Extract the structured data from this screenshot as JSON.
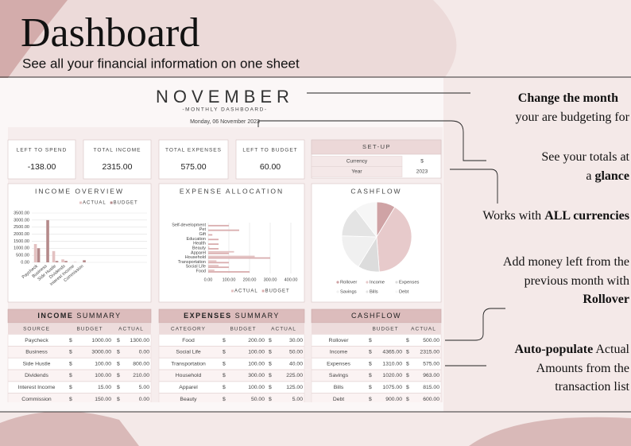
{
  "header": {
    "title": "Dashboard",
    "subtitle": "See all your financial information on one sheet"
  },
  "dashboard": {
    "month": "NOVEMBER",
    "subtitle": "-MONTHLY DASHBOARD-",
    "date": "Monday, 06 November 2023"
  },
  "cards": [
    {
      "label": "LEFT TO SPEND",
      "value": "-138.00"
    },
    {
      "label": "TOTAL INCOME",
      "value": "2315.00"
    },
    {
      "label": "TOTAL EXPENSES",
      "value": "575.00"
    },
    {
      "label": "LEFT TO BUDGET",
      "value": "60.00"
    }
  ],
  "setup": {
    "title": "SET-UP",
    "rows": [
      [
        "Currency",
        "$"
      ],
      [
        "Year",
        "2023"
      ]
    ]
  },
  "chart_data": [
    {
      "type": "bar",
      "title": "INCOME OVERVIEW",
      "categories": [
        "Paycheck",
        "Business",
        "Side Hustle",
        "Dividends",
        "Interest Income",
        "Commission"
      ],
      "series": [
        {
          "name": "ACTUAL",
          "color": "#e3c1c1",
          "values": [
            1300,
            0,
            800,
            210,
            5,
            0
          ]
        },
        {
          "name": "BUDGET",
          "color": "#b58a8b",
          "values": [
            1000,
            3000,
            100,
            100,
            15,
            150
          ]
        }
      ],
      "ylim": [
        0,
        3500
      ],
      "yticks": [
        {
          "value": 0,
          "label": "0.00"
        },
        {
          "value": 500,
          "label": "500.00"
        },
        {
          "value": 1000,
          "label": "1000.00"
        },
        {
          "value": 1500,
          "label": "1500.00"
        },
        {
          "value": 2000,
          "label": "2000.00"
        },
        {
          "value": 2500,
          "label": "2500.00"
        },
        {
          "value": 3000,
          "label": "3000.00"
        },
        {
          "value": 3500,
          "label": "3500.00"
        }
      ],
      "grid": true
    },
    {
      "type": "hbar",
      "title": "EXPENSE ALLOCATION",
      "categories": [
        "Food",
        "Social Life",
        "Transportation",
        "Household",
        "Apparel",
        "Beauty",
        "Health",
        "Education",
        "Gift",
        "Pet",
        "Self-development"
      ],
      "series": [
        {
          "name": "ACTUAL",
          "color": "#e3c1c1",
          "values": [
            30,
            50,
            40,
            225,
            125,
            5,
            0,
            0,
            0,
            0,
            0
          ]
        },
        {
          "name": "BUDGET",
          "color": "#d9adae",
          "values": [
            200,
            100,
            100,
            300,
            100,
            50,
            50,
            50,
            20,
            150,
            100
          ]
        }
      ],
      "xlim": [
        0,
        400
      ],
      "xticks": [
        {
          "value": 0,
          "label": "0.00"
        },
        {
          "value": 100,
          "label": "100.00"
        },
        {
          "value": 200,
          "label": "200.00"
        },
        {
          "value": 300,
          "label": "300.00"
        },
        {
          "value": 400,
          "label": "400.00"
        }
      ],
      "grid": true
    },
    {
      "type": "pie",
      "title": "CASHFLOW",
      "categories": [
        "Rollover",
        "Income",
        "Expenses",
        "Savings",
        "Bills",
        "Debt"
      ],
      "values": [
        500,
        2315,
        575,
        963,
        815,
        600
      ],
      "colors": [
        "#cfa3a5",
        "#e7cacb",
        "#dcdcdc",
        "#f0f0f0",
        "#e4e4e4",
        "#f6f6f6"
      ]
    }
  ],
  "tables": [
    {
      "title_bold": "INCOME",
      "title": "SUMMARY",
      "columns": [
        "SOURCE",
        "BUDGET",
        "ACTUAL"
      ],
      "rows": [
        [
          "Paycheck",
          "1000.00",
          "1300.00"
        ],
        [
          "Business",
          "3000.00",
          "0.00"
        ],
        [
          "Side Hustle",
          "100.00",
          "800.00"
        ],
        [
          "Dividends",
          "100.00",
          "210.00"
        ],
        [
          "Interest Income",
          "15.00",
          "5.00"
        ],
        [
          "Commission",
          "150.00",
          "0.00"
        ]
      ]
    },
    {
      "title_bold": "EXPENSES",
      "title": "SUMMARY",
      "columns": [
        "CATEGORY",
        "BUDGET",
        "ACTUAL"
      ],
      "rows": [
        [
          "Food",
          "200.00",
          "30.00"
        ],
        [
          "Social Life",
          "100.00",
          "50.00"
        ],
        [
          "Transportation",
          "100.00",
          "40.00"
        ],
        [
          "Household",
          "300.00",
          "225.00"
        ],
        [
          "Apparel",
          "100.00",
          "125.00"
        ],
        [
          "Beauty",
          "50.00",
          "5.00"
        ]
      ]
    },
    {
      "title": "CASHFLOW",
      "columns": [
        null,
        "BUDGET",
        "ACTUAL"
      ],
      "rows": [
        [
          "Rollover",
          null,
          "500.00"
        ],
        [
          "Income",
          "4365.00",
          "2315.00"
        ],
        [
          "Expenses",
          "1310.00",
          "575.00"
        ],
        [
          "Savings",
          "1020.00",
          "963.00"
        ],
        [
          "Bills",
          "1075.00",
          "815.00"
        ],
        [
          "Debt",
          "900.00",
          "600.00"
        ]
      ]
    }
  ],
  "annotations": [
    {
      "lines": [
        [
          {
            "text": "Change the month",
            "bold": true
          }
        ],
        [
          {
            "text": "your are budgeting for"
          }
        ]
      ]
    },
    {
      "lines": [
        [
          {
            "text": "See your totals at"
          }
        ],
        [
          {
            "text": "a "
          },
          {
            "text": "glance",
            "bold": true
          }
        ]
      ]
    },
    {
      "lines": [
        [
          {
            "text": "Works with "
          },
          {
            "text": "ALL currencies",
            "bold": true
          }
        ]
      ]
    },
    {
      "lines": [
        [
          {
            "text": "Add money left from the"
          }
        ],
        [
          {
            "text": "previous month with"
          }
        ],
        [
          {
            "text": "Rollover",
            "bold": true
          }
        ]
      ]
    },
    {
      "lines": [
        [
          {
            "text": "Auto-populate",
            "bold": true
          },
          {
            "text": " Actual"
          }
        ],
        [
          {
            "text": "Amounts from the"
          }
        ],
        [
          {
            "text": "transaction list"
          }
        ]
      ]
    }
  ]
}
